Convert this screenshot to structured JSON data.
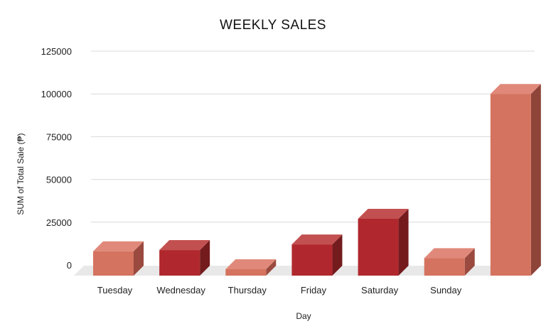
{
  "chart_data": {
    "type": "bar",
    "title": "WEEKLY SALES",
    "xlabel": "Day",
    "ylabel": "SUM of Total Sale (₱)",
    "categories": [
      "Tuesday",
      "Wednesday",
      "Thursday",
      "Friday",
      "Saturday",
      "Sunday",
      ""
    ],
    "values": [
      8000,
      8700,
      -3500,
      12000,
      27000,
      4000,
      100000
    ],
    "ylim": [
      -6000,
      125000
    ],
    "yticks": [
      0,
      25000,
      50000,
      75000,
      100000,
      125000
    ],
    "ytick_labels": [
      "0",
      "25000",
      "50000",
      "75000",
      "100000",
      "125000"
    ],
    "grid": true,
    "legend": "none",
    "bar_style": "3d",
    "colors": {
      "front": [
        "#d4735f",
        "#b0282d",
        "#d4735f",
        "#b0282d",
        "#b0282d",
        "#d4735f",
        "#d4735f"
      ],
      "top": [
        "#e0897a",
        "#c35050",
        "#e0897a",
        "#c35050",
        "#c35050",
        "#e0897a",
        "#e0897a"
      ],
      "side": [
        "#9a4a3e",
        "#741b1e",
        "#9a4a3e",
        "#741b1e",
        "#741b1e",
        "#9a4a3e",
        "#8e4439"
      ],
      "grid": "#d9d9d9",
      "floor": "#e8e8e8"
    }
  }
}
